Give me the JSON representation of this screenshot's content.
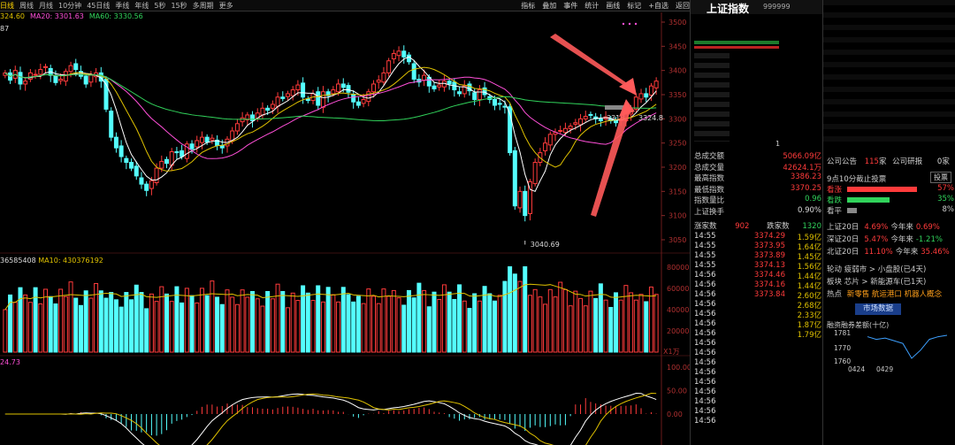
{
  "toolbar": {
    "periods": [
      "日线",
      "周线",
      "月线",
      "10分钟",
      "45日线",
      "季线",
      "年线",
      "5秒",
      "15秒",
      "多周期",
      "更多"
    ],
    "tools": [
      "指标",
      "叠加",
      "事件",
      "统计",
      "画线",
      "标记",
      "+自选",
      "返回"
    ]
  },
  "legend": {
    "ma_partial": "324.60",
    "ma20": "MA20: 3301.63",
    "ma60": "MA60: 3330.56",
    "sub_partial": "87"
  },
  "price_axis": [
    "3500",
    "3450",
    "3400",
    "3350",
    "3300",
    "3250",
    "3200",
    "3150",
    "3100",
    "3050"
  ],
  "annotations": {
    "low_label": "3040.69",
    "mid_label": "3318.",
    "last_label": "3324.8"
  },
  "volume": {
    "legend_vol": "36585408",
    "legend_ma10": "MA10: 430376192",
    "axis": [
      "80000",
      "60000",
      "40000",
      "20000"
    ],
    "unit": "X1万"
  },
  "macd": {
    "legend": "24.73",
    "axis": [
      "100.00",
      "50.00",
      "0.00"
    ]
  },
  "panel": {
    "title": "上证指数",
    "code": "999999",
    "stats": [
      {
        "label": "总成交额",
        "value": "5066.09亿",
        "color": "red"
      },
      {
        "label": "总成交量",
        "value": "42624.1万",
        "color": "red"
      },
      {
        "label": "最高指数",
        "value": "3386.23",
        "color": "red"
      },
      {
        "label": "最低指数",
        "value": "3370.25",
        "color": "red"
      },
      {
        "label": "指数量比",
        "value": "0.96",
        "color": "green"
      },
      {
        "label": "上证换手",
        "value": "0.90%",
        "color": "white"
      }
    ],
    "up_label": "涨家数",
    "up_value": "902",
    "down_label": "跌家数",
    "down_value": "1320",
    "ticks": [
      {
        "time": "14:55",
        "price": "3374.29",
        "vol": "1.59亿"
      },
      {
        "time": "14:55",
        "price": "3373.95",
        "vol": "1.64亿"
      },
      {
        "time": "14:55",
        "price": "3373.89",
        "vol": "1.45亿"
      },
      {
        "time": "14:55",
        "price": "3374.13",
        "vol": "1.56亿"
      },
      {
        "time": "14:56",
        "price": "3374.46",
        "vol": "1.44亿"
      },
      {
        "time": "14:56",
        "price": "3374.16",
        "vol": "1.44亿"
      },
      {
        "time": "14:56",
        "price": "3373.84",
        "vol": "2.60亿"
      },
      {
        "time": "14:56",
        "price": "",
        "vol": "2.68亿"
      },
      {
        "time": "14:56",
        "price": "",
        "vol": "2.33亿"
      },
      {
        "time": "14:56",
        "price": "",
        "vol": "1.87亿"
      },
      {
        "time": "14:56",
        "price": "",
        "vol": "1.79亿"
      },
      {
        "time": "14:56",
        "price": "",
        "vol": ""
      },
      {
        "time": "14:56",
        "price": "",
        "vol": ""
      },
      {
        "time": "14:56",
        "price": "",
        "vol": ""
      },
      {
        "time": "14:56",
        "price": "",
        "vol": ""
      },
      {
        "time": "14:56",
        "price": "",
        "vol": ""
      },
      {
        "time": "14:56",
        "price": "",
        "vol": ""
      },
      {
        "time": "14:56",
        "price": "",
        "vol": ""
      },
      {
        "time": "14:56",
        "price": "",
        "vol": ""
      },
      {
        "time": "14:56",
        "price": "",
        "vol": ""
      }
    ],
    "stray_1": "1"
  },
  "news": {
    "announce_label": "公司公告",
    "announce_count": "115",
    "announce_unit": "家",
    "research_label": "公司研报",
    "research_count": "0",
    "research_unit": "家",
    "vote_title": "9点10分截止投票",
    "vote_btn": "投票",
    "votes": [
      {
        "label": "看涨",
        "pct": "57%",
        "color": "red",
        "fill": 0.57
      },
      {
        "label": "看跌",
        "pct": "35%",
        "color": "green",
        "fill": 0.35
      },
      {
        "label": "看平",
        "pct": "8%",
        "color": "gray",
        "fill": 0.08
      }
    ],
    "perf": [
      {
        "name": "上证20日",
        "v1": "4.69%",
        "l2": "今年来",
        "v2": "0.69%",
        "c2": "red"
      },
      {
        "name": "深证20日",
        "v1": "5.47%",
        "l2": "今年来",
        "v2": "-1.21%",
        "c2": "green"
      },
      {
        "name": "北证20日",
        "v1": "11.10%",
        "l2": "今年来",
        "v2": "35.46%",
        "c2": "red"
      }
    ],
    "rotation": "轮动 疲弱市 > 小盘股(已4天)",
    "sector": "板块 芯片 > 新能源车(已1天)",
    "hot_label": "热点",
    "hot": "新零售 航运港口 机器人概念",
    "market_btn": "市场数据",
    "margin_title": "融资融券差额(十亿)",
    "margin_axis": [
      "1781",
      "1770",
      "1760"
    ],
    "margin_dates": [
      "0424",
      "0429"
    ],
    "margin_values": [
      1778,
      1776,
      1777,
      1775,
      1773,
      1762,
      1768,
      1776,
      1778,
      1779
    ]
  }
}
